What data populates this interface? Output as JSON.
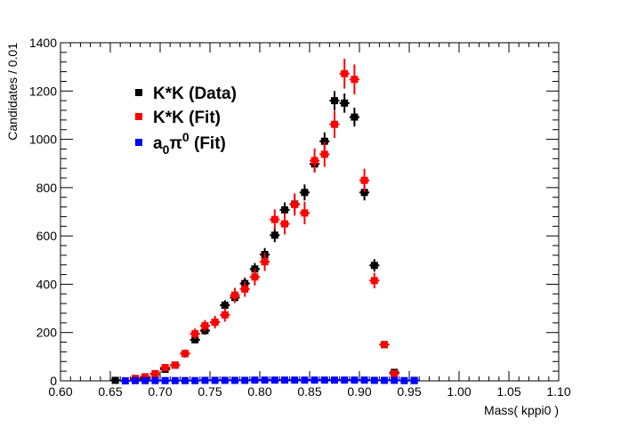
{
  "chart_data": {
    "type": "scatter",
    "title": "",
    "xlabel": "Mass( kppi0 )",
    "ylabel": "Candidates / 0.01",
    "xlim": [
      0.6,
      1.1
    ],
    "ylim": [
      0,
      1400
    ],
    "x_ticks": [
      "0.60",
      "0.65",
      "0.70",
      "0.75",
      "0.80",
      "0.85",
      "0.90",
      "0.95",
      "1.00",
      "1.05",
      "1.10"
    ],
    "y_ticks": [
      "0",
      "200",
      "400",
      "600",
      "800",
      "1000",
      "1200",
      "1400"
    ],
    "grid": false,
    "legend_position": "upper-left",
    "series": [
      {
        "name": "K*K (Data)",
        "legend_label": "K*K (Data)",
        "color": "#000000",
        "points": [
          {
            "x": 0.655,
            "y": 2,
            "err": 2
          },
          {
            "x": 0.675,
            "y": 7,
            "err": 3
          },
          {
            "x": 0.685,
            "y": 10,
            "err": 4
          },
          {
            "x": 0.695,
            "y": 28,
            "err": 6
          },
          {
            "x": 0.705,
            "y": 48,
            "err": 8
          },
          {
            "x": 0.715,
            "y": 65,
            "err": 9
          },
          {
            "x": 0.725,
            "y": 113,
            "err": 12
          },
          {
            "x": 0.735,
            "y": 170,
            "err": 15
          },
          {
            "x": 0.745,
            "y": 208,
            "err": 17
          },
          {
            "x": 0.755,
            "y": 243,
            "err": 18
          },
          {
            "x": 0.765,
            "y": 313,
            "err": 21
          },
          {
            "x": 0.775,
            "y": 345,
            "err": 22
          },
          {
            "x": 0.785,
            "y": 403,
            "err": 24
          },
          {
            "x": 0.795,
            "y": 463,
            "err": 25
          },
          {
            "x": 0.805,
            "y": 523,
            "err": 27
          },
          {
            "x": 0.815,
            "y": 603,
            "err": 29
          },
          {
            "x": 0.825,
            "y": 708,
            "err": 31
          },
          {
            "x": 0.835,
            "y": 732,
            "err": 32
          },
          {
            "x": 0.845,
            "y": 780,
            "err": 33
          },
          {
            "x": 0.855,
            "y": 898,
            "err": 35
          },
          {
            "x": 0.865,
            "y": 992,
            "err": 37
          },
          {
            "x": 0.875,
            "y": 1160,
            "err": 40
          },
          {
            "x": 0.885,
            "y": 1150,
            "err": 40
          },
          {
            "x": 0.895,
            "y": 1092,
            "err": 39
          },
          {
            "x": 0.905,
            "y": 780,
            "err": 33
          },
          {
            "x": 0.915,
            "y": 478,
            "err": 26
          },
          {
            "x": 0.925,
            "y": 150,
            "err": 14
          },
          {
            "x": 0.935,
            "y": 35,
            "err": 7
          },
          {
            "x": 0.955,
            "y": 2,
            "err": 2
          }
        ]
      },
      {
        "name": "K*K (Fit)",
        "legend_label": "K*K (Fit)",
        "color": "#ff0000",
        "points": [
          {
            "x": 0.675,
            "y": 10,
            "err": 6
          },
          {
            "x": 0.685,
            "y": 17,
            "err": 7
          },
          {
            "x": 0.695,
            "y": 30,
            "err": 9
          },
          {
            "x": 0.705,
            "y": 55,
            "err": 11
          },
          {
            "x": 0.715,
            "y": 65,
            "err": 13
          },
          {
            "x": 0.725,
            "y": 113,
            "err": 17
          },
          {
            "x": 0.735,
            "y": 195,
            "err": 22
          },
          {
            "x": 0.745,
            "y": 228,
            "err": 24
          },
          {
            "x": 0.755,
            "y": 243,
            "err": 26
          },
          {
            "x": 0.765,
            "y": 273,
            "err": 28
          },
          {
            "x": 0.775,
            "y": 355,
            "err": 30
          },
          {
            "x": 0.785,
            "y": 380,
            "err": 32
          },
          {
            "x": 0.795,
            "y": 430,
            "err": 35
          },
          {
            "x": 0.805,
            "y": 493,
            "err": 38
          },
          {
            "x": 0.815,
            "y": 668,
            "err": 42
          },
          {
            "x": 0.825,
            "y": 650,
            "err": 44
          },
          {
            "x": 0.835,
            "y": 730,
            "err": 46
          },
          {
            "x": 0.845,
            "y": 695,
            "err": 47
          },
          {
            "x": 0.855,
            "y": 912,
            "err": 50
          },
          {
            "x": 0.865,
            "y": 938,
            "err": 52
          },
          {
            "x": 0.875,
            "y": 1062,
            "err": 56
          },
          {
            "x": 0.885,
            "y": 1272,
            "err": 62
          },
          {
            "x": 0.895,
            "y": 1248,
            "err": 62
          },
          {
            "x": 0.905,
            "y": 830,
            "err": 48
          },
          {
            "x": 0.915,
            "y": 415,
            "err": 32
          },
          {
            "x": 0.925,
            "y": 150,
            "err": 14
          },
          {
            "x": 0.935,
            "y": 30,
            "err": 7
          }
        ]
      },
      {
        "name": "a0pi0 (Fit)",
        "legend_label_parts": {
          "base": "a",
          "sub": "0",
          "mid": "π",
          "sup": "0",
          "tail": " (Fit)"
        },
        "color": "#0000ff",
        "points": [
          {
            "x": 0.665,
            "y": 0
          },
          {
            "x": 0.675,
            "y": 1
          },
          {
            "x": 0.685,
            "y": 1
          },
          {
            "x": 0.695,
            "y": 1
          },
          {
            "x": 0.705,
            "y": 1
          },
          {
            "x": 0.715,
            "y": 1
          },
          {
            "x": 0.725,
            "y": 1
          },
          {
            "x": 0.735,
            "y": 1
          },
          {
            "x": 0.745,
            "y": 2
          },
          {
            "x": 0.755,
            "y": 2
          },
          {
            "x": 0.765,
            "y": 2
          },
          {
            "x": 0.775,
            "y": 2
          },
          {
            "x": 0.785,
            "y": 2
          },
          {
            "x": 0.795,
            "y": 3
          },
          {
            "x": 0.805,
            "y": 3
          },
          {
            "x": 0.815,
            "y": 3
          },
          {
            "x": 0.825,
            "y": 3
          },
          {
            "x": 0.835,
            "y": 3
          },
          {
            "x": 0.845,
            "y": 3
          },
          {
            "x": 0.855,
            "y": 3
          },
          {
            "x": 0.865,
            "y": 3
          },
          {
            "x": 0.875,
            "y": 3
          },
          {
            "x": 0.885,
            "y": 3
          },
          {
            "x": 0.895,
            "y": 3
          },
          {
            "x": 0.905,
            "y": 3
          },
          {
            "x": 0.915,
            "y": 2
          },
          {
            "x": 0.925,
            "y": 2
          },
          {
            "x": 0.935,
            "y": 2
          },
          {
            "x": 0.945,
            "y": 1
          },
          {
            "x": 0.955,
            "y": 1
          }
        ]
      }
    ]
  }
}
